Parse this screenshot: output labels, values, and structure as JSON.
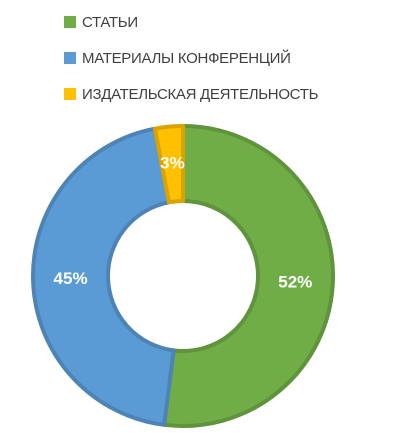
{
  "chart_data": {
    "type": "donut",
    "series": [
      {
        "name": "СТАТЬИ",
        "color": "#70ad47",
        "values": [
          52
        ],
        "value_labels": [
          "52%"
        ]
      },
      {
        "name": "МАТЕРИАЛЫ КОНФЕРЕНЦИЙ",
        "color": "#5b9bd5",
        "values": [
          45
        ],
        "value_labels": [
          "45%"
        ]
      },
      {
        "name": "ИЗДАТЕЛЬСКАЯ ДЕЯТЕЛЬНОСТЬ",
        "color": "#ffc000",
        "values": [
          3
        ],
        "value_labels": [
          "3%"
        ]
      }
    ],
    "legend": "top"
  }
}
